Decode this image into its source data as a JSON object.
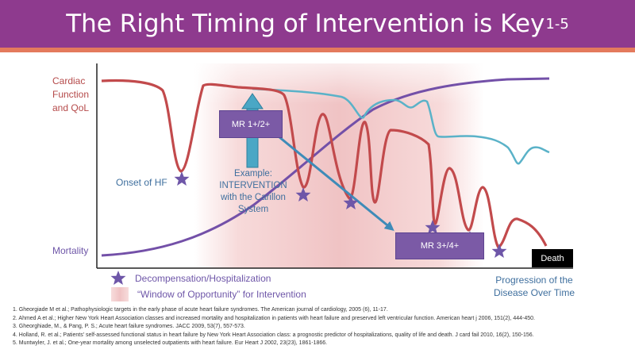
{
  "title": {
    "text": "The Right Timing of Intervention is Key",
    "superscript": "1-5"
  },
  "colors": {
    "title_bar": "#8e3a8e",
    "title_stripe": "#e47a5d",
    "cardiac_curve": "#c24a4c",
    "therapy_curve": "#5ab2c8",
    "mortality_curve": "#7350a8",
    "intervention_arrow": "#3e8bb8",
    "star": "#6e56a8",
    "window_shading": "#f0c3c4"
  },
  "labels": {
    "cardiac": "Cardiac Function and QoL",
    "mortality": "Mortality",
    "onset": "Onset of HF",
    "example": "Example: INTERVENTION with the Carillon System",
    "progression": "Progression of the Disease Over Time"
  },
  "boxes": {
    "mr_early": "MR 1+/2+",
    "mr_late": "MR 3+/4+",
    "death": "Death"
  },
  "legend": {
    "decompensation": "Decompensation/Hospitalization",
    "window": "“Window of Opportunity” for Intervention"
  },
  "references": [
    "1. Gheorgiade M et al.; Pathophysiologic targets in the early phase of acute heart failure syndromes. The American journal of cardiology, 2005 (6), 11-17.",
    "2. Ahmed A et al.; Higher New York Heart Association classes and increased mortality and hospitalization in patients with heart failure and preserved left ventricular function. American heart j 2006, 151(2), 444-450.",
    "3. Gheorghiade, M., & Pang, P. S.; Acute heart failure syndromes. JACC 2009, 53(7), 557-573.",
    "4. Holland, R. et al.; Patients' self-assessed functional status in heart failure by New York Heart Association class: a prognostic predictor of hospitalizations, quality of life and death. J card fail 2010, 16(2), 150-156.",
    "5. Muntwyler, J. et al.; One-year mortality among unselected outpatients with heart failure. Eur Heart J 2002, 23(23), 1861-1866."
  ]
}
